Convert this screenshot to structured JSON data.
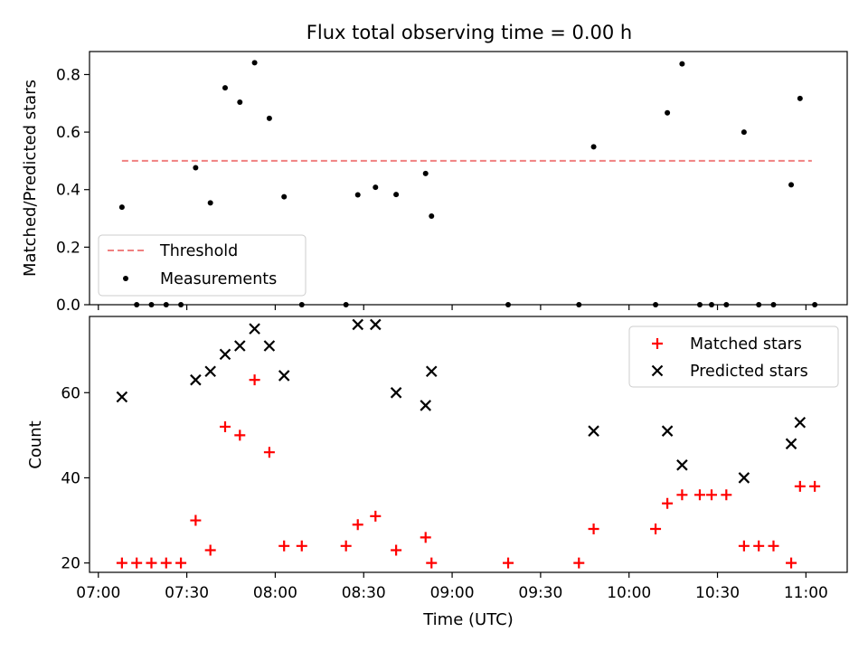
{
  "chart_data": [
    {
      "type": "scatter",
      "title": "Flux total observing time = 0.00 h",
      "xlabel": "",
      "ylabel": "Matched/Predicted stars",
      "xlim": [
        "06:57",
        "11:14"
      ],
      "ylim": [
        0,
        0.88
      ],
      "yticks": [
        0.0,
        0.2,
        0.4,
        0.6,
        0.8
      ],
      "ytick_labels": [
        "0.0",
        "0.2",
        "0.4",
        "0.6",
        "0.8"
      ],
      "legend": {
        "position": "lower-left",
        "entries": [
          "Threshold",
          "Measurements"
        ]
      },
      "colors": {
        "threshold": "#f08080",
        "measurements": "#000000"
      },
      "threshold": {
        "name": "Threshold",
        "value": 0.5,
        "x_range": [
          "07:08",
          "11:02"
        ]
      },
      "series": [
        {
          "name": "Measurements",
          "points": [
            {
              "x": "07:08",
              "y": 0.339
            },
            {
              "x": "07:13",
              "y": 0.0
            },
            {
              "x": "07:18",
              "y": 0.0
            },
            {
              "x": "07:23",
              "y": 0.0
            },
            {
              "x": "07:28",
              "y": 0.0
            },
            {
              "x": "07:33",
              "y": 0.476
            },
            {
              "x": "07:38",
              "y": 0.354
            },
            {
              "x": "07:43",
              "y": 0.754
            },
            {
              "x": "07:48",
              "y": 0.704
            },
            {
              "x": "07:53",
              "y": 0.841
            },
            {
              "x": "07:58",
              "y": 0.648
            },
            {
              "x": "08:03",
              "y": 0.375
            },
            {
              "x": "08:09",
              "y": 0.0
            },
            {
              "x": "08:24",
              "y": 0.0
            },
            {
              "x": "08:28",
              "y": 0.382
            },
            {
              "x": "08:34",
              "y": 0.408
            },
            {
              "x": "08:41",
              "y": 0.383
            },
            {
              "x": "08:51",
              "y": 0.456
            },
            {
              "x": "08:53",
              "y": 0.308
            },
            {
              "x": "09:19",
              "y": 0.0
            },
            {
              "x": "09:43",
              "y": 0.0
            },
            {
              "x": "09:48",
              "y": 0.549
            },
            {
              "x": "10:09",
              "y": 0.0
            },
            {
              "x": "10:13",
              "y": 0.667
            },
            {
              "x": "10:18",
              "y": 0.837
            },
            {
              "x": "10:24",
              "y": 0.0
            },
            {
              "x": "10:28",
              "y": 0.0
            },
            {
              "x": "10:33",
              "y": 0.0
            },
            {
              "x": "10:39",
              "y": 0.6
            },
            {
              "x": "10:44",
              "y": 0.0
            },
            {
              "x": "10:49",
              "y": 0.0
            },
            {
              "x": "10:55",
              "y": 0.417
            },
            {
              "x": "10:58",
              "y": 0.717
            },
            {
              "x": "11:03",
              "y": 0.0
            }
          ]
        }
      ]
    },
    {
      "type": "scatter",
      "title": "",
      "xlabel": "Time (UTC)",
      "ylabel": "Count",
      "xlim": [
        "06:57",
        "11:14"
      ],
      "ylim": [
        17.8,
        77.9
      ],
      "xticks": [
        "07:00",
        "07:30",
        "08:00",
        "08:30",
        "09:00",
        "09:30",
        "10:00",
        "10:30",
        "11:00"
      ],
      "xtick_labels": [
        "07:00",
        "07:30",
        "08:00",
        "08:30",
        "09:00",
        "09:30",
        "10:00",
        "10:30",
        "11:00"
      ],
      "yticks": [
        20,
        40,
        60
      ],
      "ytick_labels": [
        "20",
        "40",
        "60"
      ],
      "legend": {
        "position": "upper-right",
        "entries": [
          "Matched stars",
          "Predicted stars"
        ]
      },
      "colors": {
        "matched": "#ff0000",
        "predicted": "#000000"
      },
      "series": [
        {
          "name": "Matched stars",
          "points": [
            {
              "x": "07:08",
              "y": 20
            },
            {
              "x": "07:13",
              "y": 20
            },
            {
              "x": "07:18",
              "y": 20
            },
            {
              "x": "07:23",
              "y": 20
            },
            {
              "x": "07:28",
              "y": 20
            },
            {
              "x": "07:33",
              "y": 30
            },
            {
              "x": "07:38",
              "y": 23
            },
            {
              "x": "07:43",
              "y": 52
            },
            {
              "x": "07:48",
              "y": 50
            },
            {
              "x": "07:53",
              "y": 63
            },
            {
              "x": "07:58",
              "y": 46
            },
            {
              "x": "08:03",
              "y": 24
            },
            {
              "x": "08:09",
              "y": 24
            },
            {
              "x": "08:24",
              "y": 24
            },
            {
              "x": "08:28",
              "y": 29
            },
            {
              "x": "08:34",
              "y": 31
            },
            {
              "x": "08:41",
              "y": 23
            },
            {
              "x": "08:51",
              "y": 26
            },
            {
              "x": "08:53",
              "y": 20
            },
            {
              "x": "09:19",
              "y": 20
            },
            {
              "x": "09:43",
              "y": 20
            },
            {
              "x": "09:48",
              "y": 28
            },
            {
              "x": "10:09",
              "y": 28
            },
            {
              "x": "10:13",
              "y": 34
            },
            {
              "x": "10:18",
              "y": 36
            },
            {
              "x": "10:24",
              "y": 36
            },
            {
              "x": "10:28",
              "y": 36
            },
            {
              "x": "10:33",
              "y": 36
            },
            {
              "x": "10:39",
              "y": 24
            },
            {
              "x": "10:44",
              "y": 24
            },
            {
              "x": "10:49",
              "y": 24
            },
            {
              "x": "10:55",
              "y": 20
            },
            {
              "x": "10:58",
              "y": 38
            },
            {
              "x": "11:03",
              "y": 38
            }
          ]
        },
        {
          "name": "Predicted stars",
          "points": [
            {
              "x": "07:08",
              "y": 59
            },
            {
              "x": "07:33",
              "y": 63
            },
            {
              "x": "07:38",
              "y": 65
            },
            {
              "x": "07:43",
              "y": 69
            },
            {
              "x": "07:48",
              "y": 71
            },
            {
              "x": "07:53",
              "y": 75
            },
            {
              "x": "07:58",
              "y": 71
            },
            {
              "x": "08:03",
              "y": 64
            },
            {
              "x": "08:28",
              "y": 76
            },
            {
              "x": "08:34",
              "y": 76
            },
            {
              "x": "08:41",
              "y": 60
            },
            {
              "x": "08:51",
              "y": 57
            },
            {
              "x": "08:53",
              "y": 65
            },
            {
              "x": "09:48",
              "y": 51
            },
            {
              "x": "10:13",
              "y": 51
            },
            {
              "x": "10:18",
              "y": 43
            },
            {
              "x": "10:39",
              "y": 40
            },
            {
              "x": "10:55",
              "y": 48
            },
            {
              "x": "10:58",
              "y": 53
            }
          ]
        }
      ]
    }
  ]
}
